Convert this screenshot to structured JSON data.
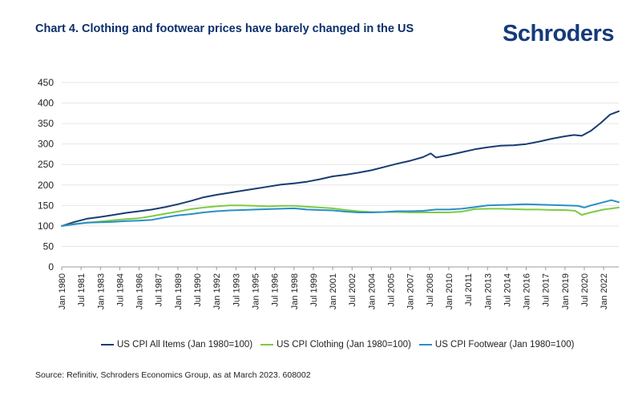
{
  "header": {
    "title": "Chart 4. Clothing and footwear prices have barely changed in the US",
    "brand": "Schroders"
  },
  "source": "Source: Refinitiv, Schroders Economics Group, as at March 2023. 608002",
  "colors": {
    "all_items": "#1a3c72",
    "clothing": "#7ecb44",
    "footwear": "#2a8fc6",
    "grid": "#e6e6e6",
    "axis": "#9a9a9a"
  },
  "chart_data": {
    "type": "line",
    "title": "Chart 4. Clothing and footwear prices have barely changed in the US",
    "xlabel": "",
    "ylabel": "",
    "ylim": [
      0,
      450
    ],
    "yticks": [
      0,
      50,
      100,
      150,
      200,
      250,
      300,
      350,
      400,
      450
    ],
    "grid": true,
    "legend_position": "bottom",
    "xlim": [
      1980.0,
      2023.17
    ],
    "x_tick_labels": [
      {
        "label": "Jan 1980",
        "t": 1980.0
      },
      {
        "label": "Jul 1981",
        "t": 1981.5
      },
      {
        "label": "Jan 1983",
        "t": 1983.0
      },
      {
        "label": "Jul 1984",
        "t": 1984.5
      },
      {
        "label": "Jan 1986",
        "t": 1986.0
      },
      {
        "label": "Jul 1987",
        "t": 1987.5
      },
      {
        "label": "Jan 1989",
        "t": 1989.0
      },
      {
        "label": "Jul 1990",
        "t": 1990.5
      },
      {
        "label": "Jan 1992",
        "t": 1992.0
      },
      {
        "label": "Jul 1993",
        "t": 1993.5
      },
      {
        "label": "Jan 1995",
        "t": 1995.0
      },
      {
        "label": "Jul 1996",
        "t": 1996.5
      },
      {
        "label": "Jan 1998",
        "t": 1998.0
      },
      {
        "label": "Jul 1999",
        "t": 1999.5
      },
      {
        "label": "Jan 2001",
        "t": 2001.0
      },
      {
        "label": "Jul 2002",
        "t": 2002.5
      },
      {
        "label": "Jan 2004",
        "t": 2004.0
      },
      {
        "label": "Jul 2005",
        "t": 2005.5
      },
      {
        "label": "Jan 2007",
        "t": 2007.0
      },
      {
        "label": "Jul 2008",
        "t": 2008.5
      },
      {
        "label": "Jan 2010",
        "t": 2010.0
      },
      {
        "label": "Jul 2011",
        "t": 2011.5
      },
      {
        "label": "Jan 2013",
        "t": 2013.0
      },
      {
        "label": "Jul 2014",
        "t": 2014.5
      },
      {
        "label": "Jan 2016",
        "t": 2016.0
      },
      {
        "label": "Jul 2017",
        "t": 2017.5
      },
      {
        "label": "Jan 2019",
        "t": 2019.0
      },
      {
        "label": "Jul 2020",
        "t": 2020.5
      },
      {
        "label": "Jan 2022",
        "t": 2022.0
      }
    ],
    "series": [
      {
        "name": "US CPI All Items (Jan 1980=100)",
        "color": "#1a3c72",
        "points": [
          [
            1980.0,
            100
          ],
          [
            1981.0,
            110
          ],
          [
            1982.0,
            118
          ],
          [
            1983.0,
            122
          ],
          [
            1984.0,
            127
          ],
          [
            1985.0,
            132
          ],
          [
            1986.0,
            136
          ],
          [
            1987.0,
            140
          ],
          [
            1988.0,
            146
          ],
          [
            1989.0,
            153
          ],
          [
            1990.0,
            161
          ],
          [
            1991.0,
            170
          ],
          [
            1992.0,
            176
          ],
          [
            1993.0,
            181
          ],
          [
            1994.0,
            186
          ],
          [
            1995.0,
            191
          ],
          [
            1996.0,
            196
          ],
          [
            1997.0,
            201
          ],
          [
            1998.0,
            204
          ],
          [
            1999.0,
            208
          ],
          [
            2000.0,
            214
          ],
          [
            2001.0,
            221
          ],
          [
            2002.0,
            225
          ],
          [
            2003.0,
            230
          ],
          [
            2004.0,
            236
          ],
          [
            2005.0,
            244
          ],
          [
            2006.0,
            252
          ],
          [
            2007.0,
            259
          ],
          [
            2008.0,
            268
          ],
          [
            2008.6,
            277
          ],
          [
            2009.0,
            267
          ],
          [
            2010.0,
            273
          ],
          [
            2011.0,
            280
          ],
          [
            2012.0,
            287
          ],
          [
            2013.0,
            292
          ],
          [
            2014.0,
            296
          ],
          [
            2015.0,
            297
          ],
          [
            2016.0,
            300
          ],
          [
            2017.0,
            306
          ],
          [
            2018.0,
            313
          ],
          [
            2019.0,
            319
          ],
          [
            2019.7,
            322
          ],
          [
            2020.3,
            320
          ],
          [
            2021.0,
            332
          ],
          [
            2021.8,
            352
          ],
          [
            2022.5,
            372
          ],
          [
            2023.17,
            380
          ]
        ]
      },
      {
        "name": "US CPI Clothing (Jan 1980=100)",
        "color": "#7ecb44",
        "points": [
          [
            1980.0,
            100
          ],
          [
            1981.0,
            105
          ],
          [
            1982.0,
            108
          ],
          [
            1983.0,
            111
          ],
          [
            1984.0,
            114
          ],
          [
            1985.0,
            117
          ],
          [
            1986.0,
            119
          ],
          [
            1987.0,
            124
          ],
          [
            1988.0,
            130
          ],
          [
            1989.0,
            135
          ],
          [
            1990.0,
            141
          ],
          [
            1991.0,
            145
          ],
          [
            1992.0,
            148
          ],
          [
            1993.0,
            150
          ],
          [
            1994.0,
            150
          ],
          [
            1995.0,
            149
          ],
          [
            1996.0,
            148
          ],
          [
            1997.0,
            149
          ],
          [
            1998.0,
            149
          ],
          [
            1999.0,
            147
          ],
          [
            2000.0,
            145
          ],
          [
            2001.0,
            143
          ],
          [
            2002.0,
            139
          ],
          [
            2003.0,
            136
          ],
          [
            2004.0,
            134
          ],
          [
            2005.0,
            134
          ],
          [
            2006.0,
            134
          ],
          [
            2007.0,
            133
          ],
          [
            2008.0,
            133
          ],
          [
            2009.0,
            133
          ],
          [
            2010.0,
            133
          ],
          [
            2011.0,
            135
          ],
          [
            2012.0,
            141
          ],
          [
            2013.0,
            142
          ],
          [
            2014.0,
            142
          ],
          [
            2015.0,
            141
          ],
          [
            2016.0,
            140
          ],
          [
            2017.0,
            140
          ],
          [
            2018.0,
            139
          ],
          [
            2019.0,
            139
          ],
          [
            2019.8,
            137
          ],
          [
            2020.3,
            127
          ],
          [
            2021.0,
            133
          ],
          [
            2022.0,
            140
          ],
          [
            2023.17,
            145
          ]
        ]
      },
      {
        "name": "US CPI Footwear (Jan 1980=100)",
        "color": "#2a8fc6",
        "points": [
          [
            1980.0,
            100
          ],
          [
            1981.0,
            104
          ],
          [
            1982.0,
            108
          ],
          [
            1983.0,
            109
          ],
          [
            1984.0,
            110
          ],
          [
            1985.0,
            112
          ],
          [
            1986.0,
            113
          ],
          [
            1987.0,
            115
          ],
          [
            1988.0,
            121
          ],
          [
            1989.0,
            126
          ],
          [
            1990.0,
            129
          ],
          [
            1991.0,
            133
          ],
          [
            1992.0,
            136
          ],
          [
            1993.0,
            138
          ],
          [
            1994.0,
            139
          ],
          [
            1995.0,
            140
          ],
          [
            1996.0,
            141
          ],
          [
            1997.0,
            142
          ],
          [
            1998.0,
            143
          ],
          [
            1999.0,
            140
          ],
          [
            2000.0,
            139
          ],
          [
            2001.0,
            138
          ],
          [
            2002.0,
            135
          ],
          [
            2003.0,
            133
          ],
          [
            2004.0,
            133
          ],
          [
            2005.0,
            134
          ],
          [
            2006.0,
            136
          ],
          [
            2007.0,
            136
          ],
          [
            2008.0,
            137
          ],
          [
            2009.0,
            140
          ],
          [
            2010.0,
            140
          ],
          [
            2011.0,
            142
          ],
          [
            2012.0,
            146
          ],
          [
            2013.0,
            150
          ],
          [
            2014.0,
            151
          ],
          [
            2015.0,
            152
          ],
          [
            2016.0,
            153
          ],
          [
            2017.0,
            152
          ],
          [
            2018.0,
            151
          ],
          [
            2019.0,
            150
          ],
          [
            2020.0,
            149
          ],
          [
            2020.5,
            145
          ],
          [
            2021.0,
            150
          ],
          [
            2022.0,
            158
          ],
          [
            2022.6,
            163
          ],
          [
            2023.17,
            158
          ]
        ]
      }
    ]
  }
}
